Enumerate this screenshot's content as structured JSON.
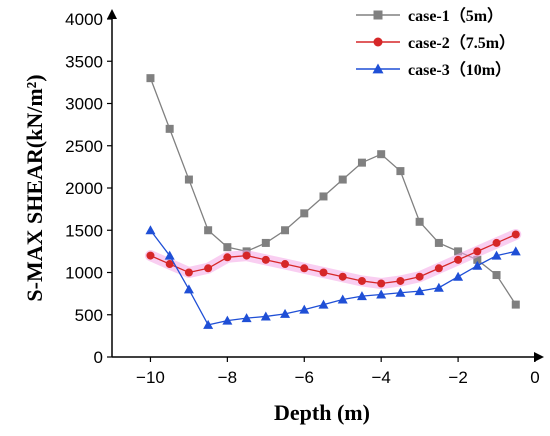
{
  "chart_data": {
    "type": "line",
    "xlabel": "Depth (m)",
    "ylabel": "S-MAX SHEAR(kN/m²)",
    "xlim": [
      -11,
      0
    ],
    "ylim": [
      0,
      4000
    ],
    "xticks": [
      -10,
      -8,
      -6,
      -4,
      -2,
      0
    ],
    "xtick_labels": [
      "−10",
      "−8",
      "−6",
      "−4",
      "−2",
      "0"
    ],
    "yticks": [
      0,
      500,
      1000,
      1500,
      2000,
      2500,
      3000,
      3500,
      4000
    ],
    "ytick_labels": [
      "0",
      "500",
      "1000",
      "1500",
      "2000",
      "2500",
      "3000",
      "3500",
      "4000"
    ],
    "grid": false,
    "legend_position": "top-right",
    "series": [
      {
        "name": "case-1（5m）",
        "color": "#808080",
        "marker": "square",
        "x": [
          -10,
          -9.5,
          -9,
          -8.5,
          -8,
          -7.5,
          -7,
          -6.5,
          -6,
          -5.5,
          -5,
          -4.5,
          -4,
          -3.5,
          -3,
          -2.5,
          -2,
          -1.5,
          -1,
          -0.5
        ],
        "y": [
          3300,
          2700,
          2100,
          1500,
          1300,
          1250,
          1350,
          1500,
          1700,
          1900,
          2100,
          2300,
          2400,
          2200,
          1600,
          1350,
          1250,
          1150,
          970,
          620
        ]
      },
      {
        "name": "case-2（7.5m）",
        "color": "#d62728",
        "marker": "circle",
        "band_color": "#f4a6e6",
        "x": [
          -10,
          -9.5,
          -9,
          -8.5,
          -8,
          -7.5,
          -7,
          -6.5,
          -6,
          -5.5,
          -5,
          -4.5,
          -4,
          -3.5,
          -3,
          -2.5,
          -2,
          -1.5,
          -1,
          -0.5
        ],
        "y": [
          1200,
          1100,
          1000,
          1050,
          1180,
          1200,
          1150,
          1100,
          1050,
          1000,
          950,
          900,
          870,
          900,
          950,
          1050,
          1150,
          1250,
          1350,
          1450
        ]
      },
      {
        "name": "case-3（10m）",
        "color": "#1f4fd6",
        "marker": "triangle",
        "x": [
          -10,
          -9.5,
          -9,
          -8.5,
          -8,
          -7.5,
          -7,
          -6.5,
          -6,
          -5.5,
          -5,
          -4.5,
          -4,
          -3.5,
          -3,
          -2.5,
          -2,
          -1.5,
          -1,
          -0.5
        ],
        "y": [
          1500,
          1200,
          800,
          380,
          430,
          460,
          480,
          510,
          560,
          620,
          680,
          720,
          740,
          760,
          780,
          820,
          950,
          1080,
          1200,
          1250
        ]
      }
    ]
  }
}
